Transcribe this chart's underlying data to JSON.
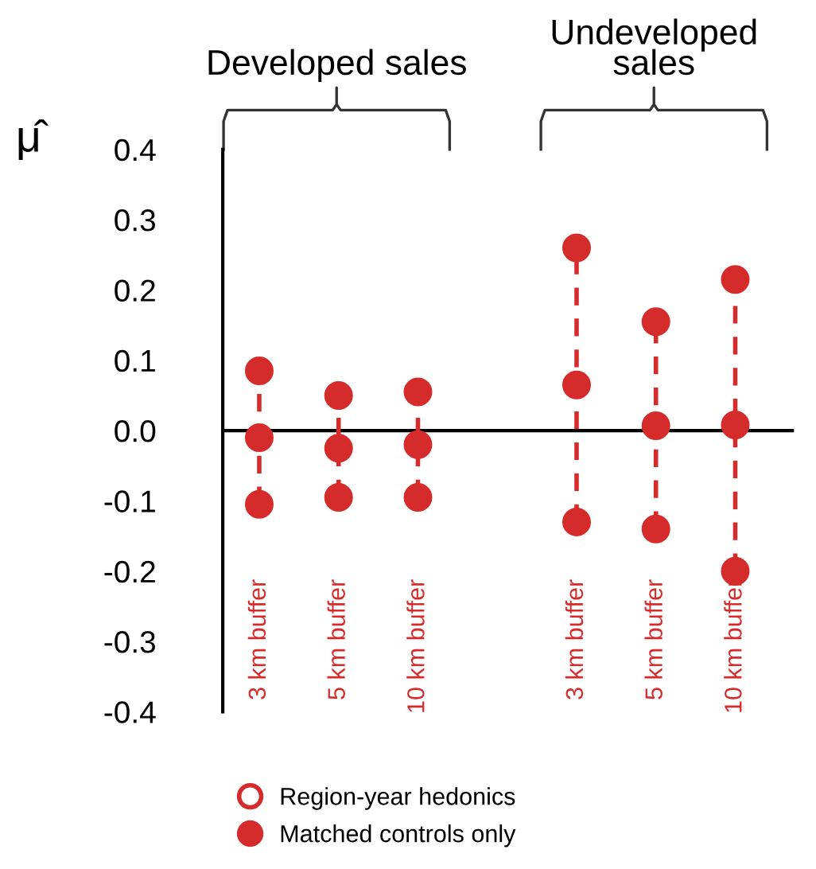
{
  "chart_data": {
    "type": "scatter",
    "ylabel": "μ̂",
    "categories": [
      "3 km buffer",
      "5 km buffer",
      "10 km buffer",
      null,
      "3 km buffer",
      "5 km buffer",
      "10 km buffer"
    ],
    "series": [
      {
        "name": "Region-year hedonics",
        "color": "#d62b2b",
        "values": [
          null,
          null,
          null,
          null,
          null,
          null,
          null
        ]
      },
      {
        "name": "Matched controls only",
        "color": "#d62b2b",
        "values": [
          -0.01,
          -0.025,
          -0.02,
          null,
          0.065,
          0.007,
          0.008
        ]
      },
      {
        "color": "#d62b2b",
        "values": [
          0.085,
          0.05,
          0.055,
          null,
          0.26,
          0.155,
          0.215
        ]
      },
      {
        "color": "#d62b2b",
        "values": [
          -0.105,
          -0.095,
          -0.095,
          null,
          -0.13,
          -0.14,
          -0.2
        ]
      }
    ],
    "ylim": [
      -0.4,
      0.4
    ],
    "yticks": [
      {
        "value": -0.4,
        "label": "-0.4"
      },
      {
        "value": -0.3,
        "label": "-0.3"
      },
      {
        "value": -0.2,
        "label": "-0.2"
      },
      {
        "value": -0.1,
        "label": "-0.1"
      },
      {
        "value": 0.0,
        "label": "0.0"
      },
      {
        "value": 0.1,
        "label": "0.1"
      },
      {
        "value": 0.2,
        "label": "0.2"
      },
      {
        "value": 0.3,
        "label": "0.3"
      },
      {
        "value": 0.4,
        "label": "0.4"
      }
    ],
    "ref_lines": [
      {
        "axis": "y",
        "value": 0,
        "color": "#000000"
      }
    ],
    "annotations": [
      "Developed sales",
      "Undeveloped\nsales"
    ],
    "marker": "circle",
    "line_style": "dashed",
    "grid": false,
    "legend": "bottom left"
  }
}
